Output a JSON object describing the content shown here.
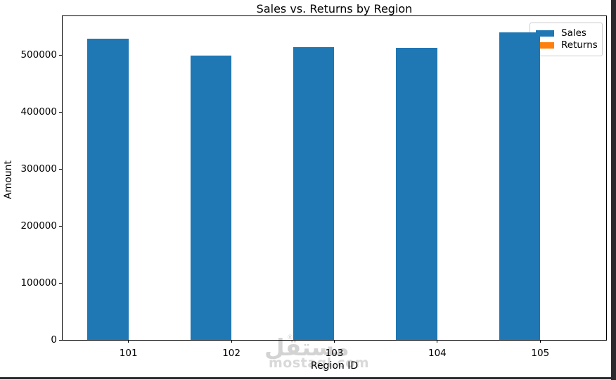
{
  "window": {
    "background": "#ffffff",
    "right_strip_color": "#2a2a2e",
    "bottom_strip_color": "#2a2a2e"
  },
  "chart_data": {
    "type": "bar",
    "title": "Sales vs. Returns by Region",
    "xlabel": "Region ID",
    "ylabel": "Amount",
    "categories": [
      "101",
      "102",
      "103",
      "104",
      "105"
    ],
    "series": [
      {
        "name": "Sales",
        "color": "#1f77b4",
        "values": [
          529000,
          499000,
          514000,
          512000,
          540000
        ]
      },
      {
        "name": "Returns",
        "color": "#ff7f0e",
        "values": [
          0,
          0,
          0,
          0,
          0
        ]
      }
    ],
    "ylim": [
      0,
      568000
    ],
    "yticks": [
      0,
      100000,
      200000,
      300000,
      400000,
      500000
    ],
    "grid": false,
    "legend_position": "upper-right"
  },
  "legend": {
    "items": [
      {
        "label": "Sales",
        "color": "#1f77b4"
      },
      {
        "label": "Returns",
        "color": "#ff7f0e"
      }
    ]
  },
  "watermark": {
    "arabic_text": "مستقل",
    "latin_text": "mostaql.com",
    "registered_mark": "®"
  }
}
